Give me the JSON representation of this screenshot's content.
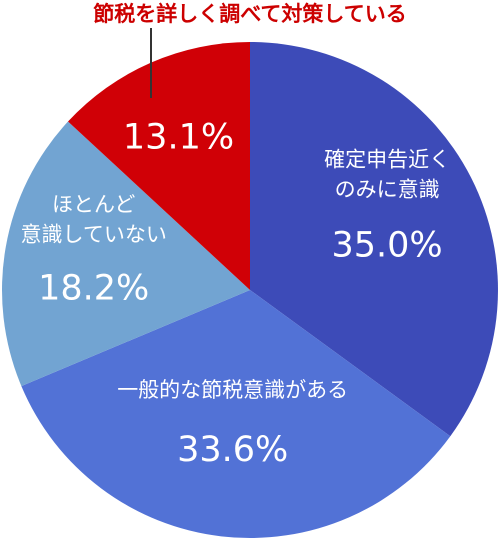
{
  "chart_data": {
    "type": "pie",
    "slices": [
      {
        "label": "確定申告近くのみに意識",
        "label_lines": [
          "確定申告近く",
          "のみに意識"
        ],
        "value": 35.0,
        "value_text": "35.0%",
        "color": "#3d4bb8"
      },
      {
        "label": "一般的な節税意識がある",
        "label_lines": [
          "一般的な節税意識がある"
        ],
        "value": 33.6,
        "value_text": "33.6%",
        "color": "#5272d6"
      },
      {
        "label": "ほとんど意識していない",
        "label_lines": [
          "ほとんど",
          "意識していない"
        ],
        "value": 18.2,
        "value_text": "18.2%",
        "color": "#72a4d2"
      },
      {
        "label": "節税を詳しく調べて対策している",
        "label_lines": [],
        "value": 13.1,
        "value_text": "13.1%",
        "color": "#d00006"
      }
    ],
    "callout": {
      "text": "節税を詳しく調べて対策している",
      "color": "#cc0000"
    },
    "start_angle": "12 o'clock",
    "direction": "clockwise"
  }
}
